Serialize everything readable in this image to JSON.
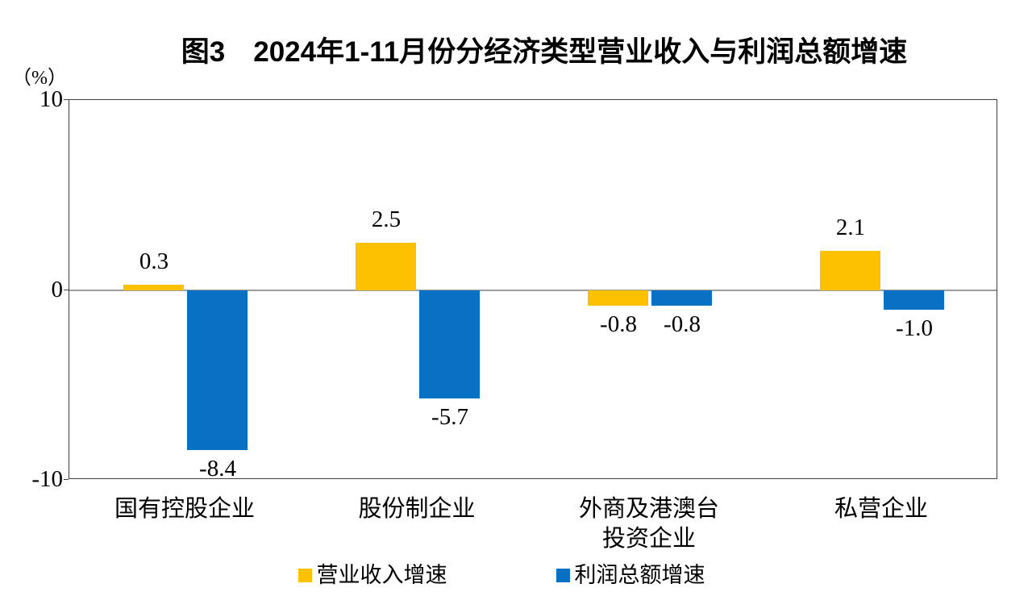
{
  "chart_data": {
    "type": "bar",
    "title": "图3　2024年1-11月份分经济类型营业收入与利润总额增速",
    "ylabel": "（%）",
    "ylim": [
      -10,
      10
    ],
    "yticks": [
      10,
      0,
      -10
    ],
    "ytick_labels": [
      "10",
      "0",
      "-10"
    ],
    "grid": false,
    "legend_position": "bottom",
    "categories": [
      "国有控股企业",
      "股份制企业",
      "外商及港澳台投资企业",
      "私营企业"
    ],
    "category_label_lines": [
      [
        "国有控股企业"
      ],
      [
        "股份制企业"
      ],
      [
        "外商及港澳台",
        "投资企业"
      ],
      [
        "私营企业"
      ]
    ],
    "series": [
      {
        "name": "营业收入增速",
        "color": "#FDC101",
        "values": [
          0.3,
          2.5,
          -0.8,
          2.1
        ],
        "value_labels": [
          "0.3",
          "2.5",
          "-0.8",
          "2.1"
        ]
      },
      {
        "name": "利润总额增速",
        "color": "#0971C3",
        "values": [
          -8.4,
          -5.7,
          -0.8,
          -1.0
        ],
        "value_labels": [
          "-8.4",
          "-5.7",
          "-0.8",
          "-1.0"
        ]
      }
    ]
  },
  "colors": {
    "revenue_bar": "#FDC101",
    "profit_bar": "#0971C3",
    "zero_line": "#9C9C9C",
    "frame": "#3F3F3F",
    "text": "#000000"
  }
}
